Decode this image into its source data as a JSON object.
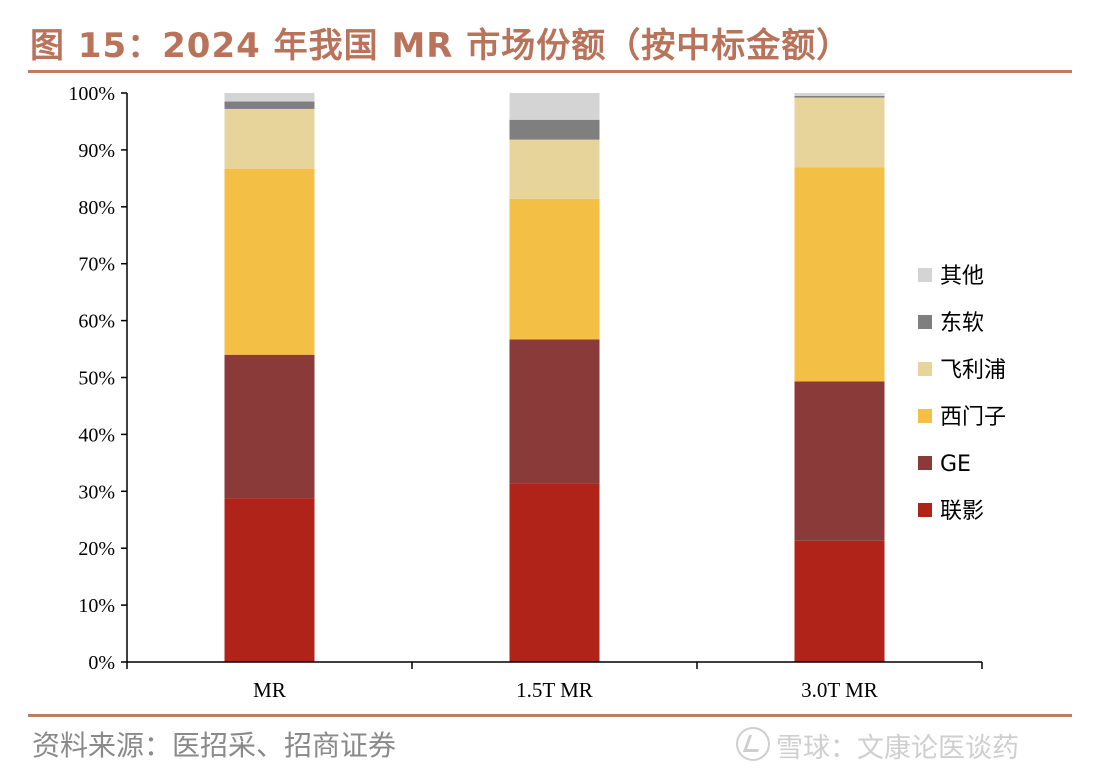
{
  "title": "图 15：2024 年我国 MR 市场份额（按中标金额）",
  "source": "资料来源：医招采、招商证券",
  "watermark": "雪球：文康论医谈药",
  "colors": {
    "联影": "#B02318",
    "GE": "#8B3A3A",
    "西门子": "#F4BF45",
    "飞利浦": "#E6D49A",
    "东软": "#7F7F7F",
    "其他": "#D4D4D4",
    "rule": "#C07C62",
    "title": "#B8735A"
  },
  "chart_data": {
    "type": "bar",
    "stacked": true,
    "categories": [
      "MR",
      "1.5T MR",
      "3.0T MR"
    ],
    "y_ticks": [
      "0%",
      "10%",
      "20%",
      "30%",
      "40%",
      "50%",
      "60%",
      "70%",
      "80%",
      "90%",
      "100%"
    ],
    "ylim": [
      0,
      100
    ],
    "legend_position": "right",
    "series": [
      {
        "name": "联影",
        "values": [
          28.8,
          31.3,
          21.3
        ]
      },
      {
        "name": "GE",
        "values": [
          25.2,
          25.4,
          28.0
        ]
      },
      {
        "name": "西门子",
        "values": [
          32.7,
          24.7,
          37.6
        ]
      },
      {
        "name": "飞利浦",
        "values": [
          10.5,
          10.4,
          12.3
        ]
      },
      {
        "name": "东软",
        "values": [
          1.3,
          3.5,
          0.3
        ]
      },
      {
        "name": "其他",
        "values": [
          1.5,
          4.7,
          0.5
        ]
      }
    ],
    "legend_order": [
      "其他",
      "东软",
      "飞利浦",
      "西门子",
      "GE",
      "联影"
    ]
  }
}
